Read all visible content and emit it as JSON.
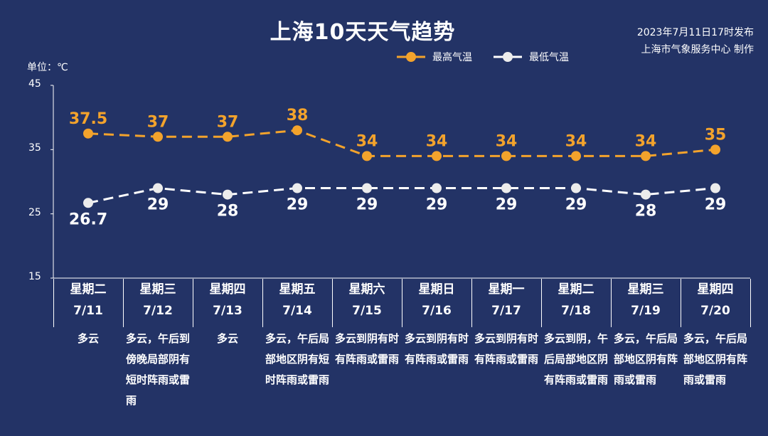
{
  "header": {
    "title": "上海10天天气趋势",
    "publish_line1": "2023年7月11日17时发布",
    "publish_line2": "上海市气象服务中心 制作"
  },
  "legend": {
    "high_label": "最高气温",
    "low_label": "最低气温"
  },
  "unit_label": "单位：℃",
  "days": [
    {
      "weekday": "星期二",
      "date": "7/11",
      "weather": "多云"
    },
    {
      "weekday": "星期三",
      "date": "7/12",
      "weather": "多云，午后到傍晚局部阴有短时阵雨或雷雨"
    },
    {
      "weekday": "星期四",
      "date": "7/13",
      "weather": "多云"
    },
    {
      "weekday": "星期五",
      "date": "7/14",
      "weather": "多云，午后局部地区阴有短时阵雨或雷雨"
    },
    {
      "weekday": "星期六",
      "date": "7/15",
      "weather": "多云到阴有时有阵雨或雷雨"
    },
    {
      "weekday": "星期日",
      "date": "7/16",
      "weather": "多云到阴有时有阵雨或雷雨"
    },
    {
      "weekday": "星期一",
      "date": "7/17",
      "weather": "多云到阴有时有阵雨或雷雨"
    },
    {
      "weekday": "星期二",
      "date": "7/18",
      "weather": "多云到阴，午后局部地区阴有阵雨或雷雨"
    },
    {
      "weekday": "星期三",
      "date": "7/19",
      "weather": "多云，午后局部地区阴有阵雨或雷雨"
    },
    {
      "weekday": "星期四",
      "date": "7/20",
      "weather": "多云，午后局部地区阴有阵雨或雷雨"
    }
  ],
  "chart_data": {
    "type": "line",
    "title": "上海10天天气趋势",
    "xlabel": "",
    "ylabel": "单位：℃",
    "categories": [
      "7/11",
      "7/12",
      "7/13",
      "7/14",
      "7/15",
      "7/16",
      "7/17",
      "7/18",
      "7/19",
      "7/20"
    ],
    "ylim": [
      15,
      45
    ],
    "yticks": [
      15,
      25,
      35,
      45
    ],
    "series": [
      {
        "name": "最高气温",
        "color": "#f3a32c",
        "values": [
          37.5,
          37,
          37,
          38,
          34,
          34,
          34,
          34,
          34,
          35
        ],
        "labels": [
          "37.5",
          "37",
          "37",
          "38",
          "34",
          "34",
          "34",
          "34",
          "34",
          "35"
        ]
      },
      {
        "name": "最低气温",
        "color": "#ffffff",
        "values": [
          26.7,
          29,
          28,
          29,
          29,
          29,
          29,
          29,
          28,
          29
        ],
        "labels": [
          "26.7",
          "29",
          "28",
          "29",
          "29",
          "29",
          "29",
          "29",
          "28",
          "29"
        ]
      }
    ],
    "grid": false,
    "legend_position": "top-right",
    "line_style": "dashed"
  },
  "colors": {
    "background": "#233366",
    "high": "#f3a32c",
    "low": "#ffffff",
    "low_marker": "#ececec"
  }
}
